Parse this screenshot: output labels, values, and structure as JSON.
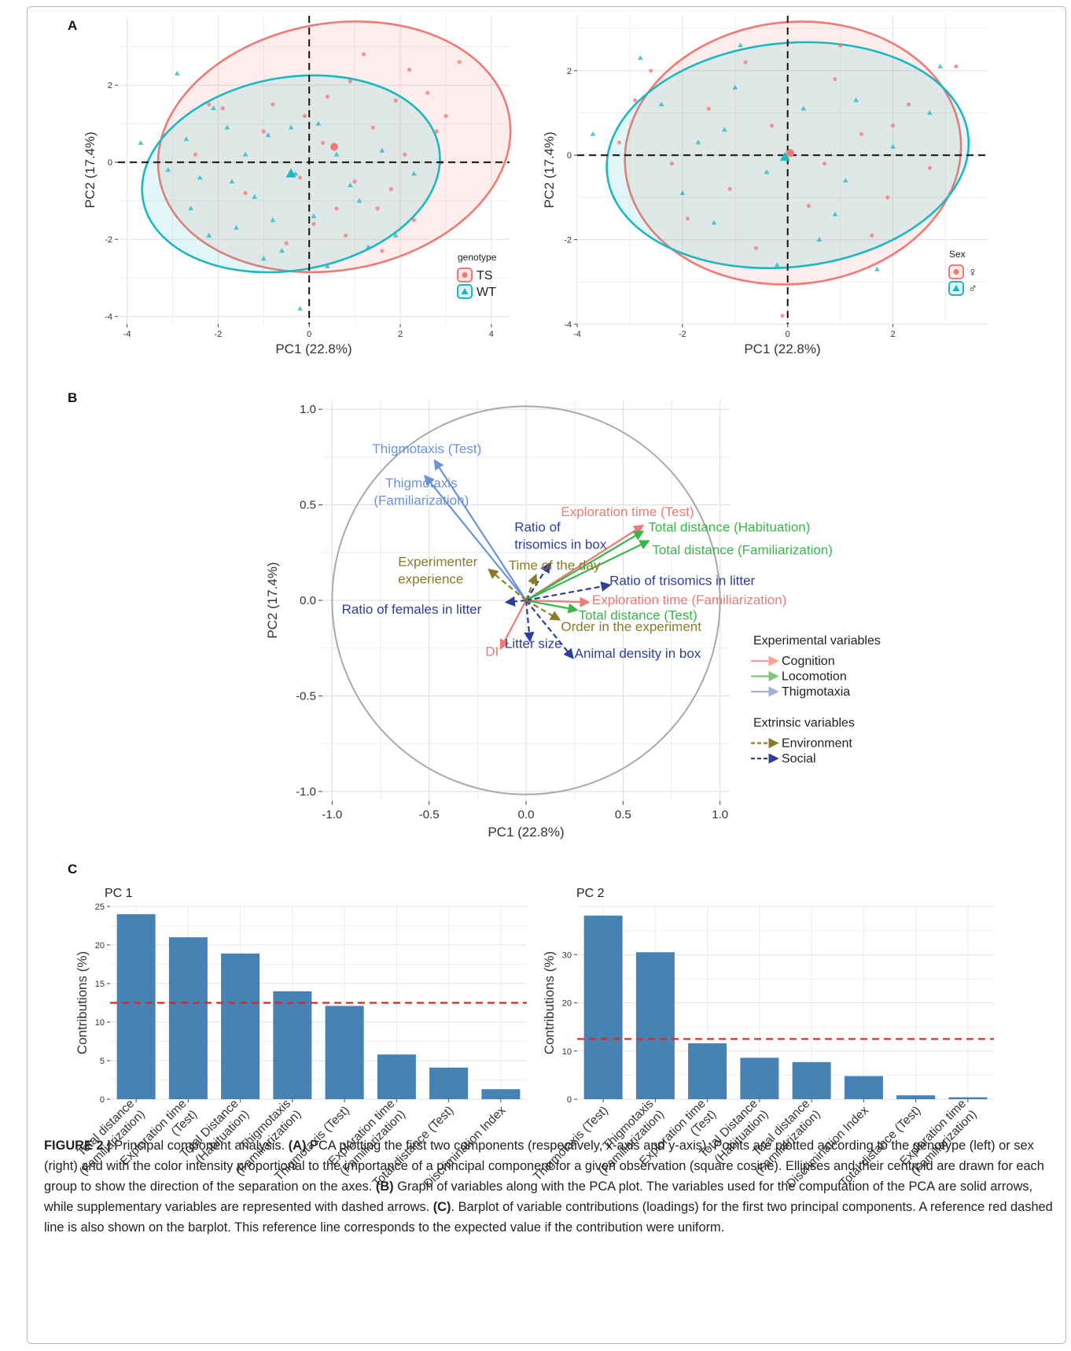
{
  "caption": {
    "label": "FIGURE 2 |",
    "s1": "Principal component analysis.",
    "a_tag": "(A)",
    "a_text": "PCA plotting the first two components (respectively, x-axis and y-axis). Points are plotted according to the genotype (left) or sex (right) and with the color intensity proportional to the importance of a principal component for a given observation (square cosine). Ellipses and their centroid are drawn for each group to show the direction of the separation on the axes.",
    "b_tag": "(B)",
    "b_text": "Graph of variables along with the PCA plot. The variables used for the computation of the PCA are solid arrows, while supplementary variables are represented with dashed arrows.",
    "c_tag": "(C)",
    "c_text": ". Barplot of variable contributions (loadings) for the first two principal components. A reference red dashed line is also shown on the barplot. This reference line corresponds to the expected value if the contribution were uniform."
  },
  "chart_data": [
    {
      "id": "A-genotype",
      "type": "scatter",
      "panel_label": "A",
      "xlabel": "PC1 (22.8%)",
      "ylabel": "PC2 (17.4%)",
      "xlim": [
        -4.2,
        4.4
      ],
      "ylim": [
        -4.2,
        3.8
      ],
      "xticks": [
        -4,
        -2,
        0,
        2,
        4
      ],
      "yticks": [
        -4,
        -2,
        0,
        2
      ],
      "legend": {
        "title": "genotype",
        "position": "bottom-right",
        "entries": [
          "TS",
          "WT"
        ]
      },
      "colors": {
        "TS": "#f07a75",
        "WT": "#1db7c0"
      },
      "ellipses": [
        {
          "name": "TS",
          "cx": 0.55,
          "cy": 0.4,
          "rx": 3.9,
          "ry": 3.2,
          "angle": -10
        },
        {
          "name": "WT",
          "cx": -0.4,
          "cy": -0.3,
          "rx": 3.3,
          "ry": 2.5,
          "angle": -10
        }
      ],
      "centroids": [
        {
          "name": "TS",
          "x": 0.55,
          "y": 0.4
        },
        {
          "name": "WT",
          "x": -0.4,
          "y": -0.3
        }
      ],
      "series": [
        {
          "name": "TS",
          "marker": "circle",
          "points": [
            [
              2.2,
              2.4
            ],
            [
              3.3,
              2.6
            ],
            [
              2.8,
              0.8
            ],
            [
              1.9,
              1.6
            ],
            [
              0.9,
              2.1
            ],
            [
              0.4,
              1.7
            ],
            [
              -0.1,
              1.2
            ],
            [
              1.4,
              0.9
            ],
            [
              2.3,
              -1.5
            ],
            [
              1.6,
              -2.3
            ],
            [
              0.6,
              -1.2
            ],
            [
              -0.2,
              -0.4
            ],
            [
              1.0,
              -0.5
            ],
            [
              -1.0,
              0.8
            ],
            [
              -1.9,
              1.4
            ],
            [
              -2.2,
              1.5
            ],
            [
              2.6,
              1.8
            ],
            [
              1.8,
              -0.7
            ],
            [
              0.8,
              -1.9
            ],
            [
              -0.5,
              -2.1
            ],
            [
              3.0,
              1.2
            ],
            [
              2.1,
              0.2
            ],
            [
              0.3,
              0.5
            ],
            [
              -1.4,
              -0.8
            ],
            [
              1.2,
              2.8
            ],
            [
              -2.5,
              0.2
            ],
            [
              0.1,
              -1.6
            ],
            [
              2.9,
              0.0
            ],
            [
              -0.8,
              1.5
            ],
            [
              1.5,
              -1.2
            ]
          ]
        },
        {
          "name": "WT",
          "marker": "triangle",
          "points": [
            [
              -3.7,
              0.5
            ],
            [
              -2.9,
              2.3
            ],
            [
              -2.7,
              0.6
            ],
            [
              -2.4,
              -0.4
            ],
            [
              -2.1,
              1.4
            ],
            [
              -1.6,
              -1.7
            ],
            [
              -1.2,
              -0.9
            ],
            [
              -0.9,
              0.7
            ],
            [
              -0.6,
              -2.3
            ],
            [
              -0.3,
              -0.3
            ],
            [
              0.1,
              -1.4
            ],
            [
              0.6,
              0.2
            ],
            [
              1.1,
              -1.0
            ],
            [
              1.6,
              0.3
            ],
            [
              2.3,
              -0.3
            ],
            [
              -1.8,
              0.9
            ],
            [
              -2.6,
              -1.2
            ],
            [
              -0.8,
              -1.5
            ],
            [
              0.4,
              -2.7
            ],
            [
              -0.2,
              -3.8
            ],
            [
              1.9,
              -1.9
            ],
            [
              -1.4,
              0.2
            ],
            [
              -2.2,
              -1.9
            ],
            [
              0.9,
              -0.6
            ],
            [
              -1.0,
              -2.5
            ],
            [
              -3.1,
              -0.2
            ],
            [
              0.2,
              1.0
            ],
            [
              1.3,
              -2.2
            ],
            [
              -1.7,
              -0.5
            ],
            [
              -0.4,
              0.9
            ]
          ]
        }
      ]
    },
    {
      "id": "A-sex",
      "type": "scatter",
      "xlabel": "PC1 (22.8%)",
      "ylabel": "PC2 (17.4%)",
      "xlim": [
        -4.0,
        3.8
      ],
      "ylim": [
        -4.0,
        3.3
      ],
      "xticks": [
        -4,
        -2,
        0,
        2
      ],
      "yticks": [
        -4,
        -2,
        0,
        2
      ],
      "legend": {
        "title": "Sex",
        "position": "bottom-right",
        "entries": [
          "♀",
          "♂"
        ]
      },
      "colors": {
        "female": "#f07a75",
        "male": "#1db7c0"
      },
      "ellipses": [
        {
          "name": "female",
          "cx": 0.1,
          "cy": 0.05,
          "rx": 3.2,
          "ry": 3.1,
          "angle": -6
        },
        {
          "name": "male",
          "cx": 0.0,
          "cy": 0.0,
          "rx": 3.45,
          "ry": 2.65,
          "angle": -6
        }
      ],
      "centroids": [
        {
          "name": "female",
          "x": 0.05,
          "y": 0.05
        },
        {
          "name": "male",
          "x": -0.05,
          "y": -0.05
        }
      ],
      "series": [
        {
          "name": "female",
          "marker": "circle",
          "points": [
            [
              3.2,
              2.1
            ],
            [
              -2.6,
              2.0
            ],
            [
              -0.8,
              2.2
            ],
            [
              0.9,
              1.8
            ],
            [
              2.3,
              1.2
            ],
            [
              -1.5,
              1.1
            ],
            [
              -0.3,
              0.7
            ],
            [
              1.4,
              0.5
            ],
            [
              2.7,
              -0.3
            ],
            [
              -2.2,
              -0.2
            ],
            [
              -1.1,
              -0.8
            ],
            [
              0.4,
              -1.2
            ],
            [
              1.6,
              -1.9
            ],
            [
              -0.1,
              -3.8
            ],
            [
              -3.2,
              0.3
            ],
            [
              1.0,
              2.6
            ],
            [
              -1.9,
              -1.5
            ],
            [
              0.7,
              -0.2
            ],
            [
              2.0,
              0.7
            ],
            [
              -0.6,
              -2.2
            ],
            [
              -2.9,
              1.3
            ],
            [
              1.9,
              -1.0
            ]
          ]
        },
        {
          "name": "male",
          "marker": "triangle",
          "points": [
            [
              -3.7,
              0.5
            ],
            [
              -2.4,
              1.2
            ],
            [
              -1.7,
              0.3
            ],
            [
              -1.0,
              1.6
            ],
            [
              -0.4,
              -0.4
            ],
            [
              0.3,
              1.1
            ],
            [
              1.1,
              -0.6
            ],
            [
              2.0,
              0.2
            ],
            [
              2.7,
              1.0
            ],
            [
              -0.9,
              2.6
            ],
            [
              1.7,
              -2.7
            ],
            [
              -2.0,
              -0.9
            ],
            [
              0.6,
              -2.0
            ],
            [
              -1.4,
              -1.6
            ],
            [
              2.9,
              2.1
            ],
            [
              -0.2,
              -2.6
            ],
            [
              1.3,
              1.3
            ],
            [
              -2.8,
              2.3
            ],
            [
              0.9,
              -1.4
            ],
            [
              -1.2,
              0.6
            ]
          ]
        }
      ]
    },
    {
      "id": "B",
      "type": "vector",
      "panel_label": "B",
      "xlabel": "PC1 (22.8%)",
      "ylabel": "PC2 (17.4%)",
      "xlim": [
        -1.05,
        1.05
      ],
      "ylim": [
        -1.05,
        1.05
      ],
      "xticks": [
        "-1.0",
        "-0.5",
        "0.0",
        "0.5",
        "1.0"
      ],
      "yticks": [
        "1.0",
        "0.5",
        "0.0",
        "-0.5",
        "-1.0"
      ],
      "legend": {
        "position": "right",
        "groups": [
          {
            "title": "Experimental variables",
            "items": [
              {
                "label": "Cognition",
                "color": "#f79e96",
                "dashed": false
              },
              {
                "label": "Locomotion",
                "color": "#7ec87e",
                "dashed": false
              },
              {
                "label": "Thigmotaxia",
                "color": "#9fb3da",
                "dashed": false
              }
            ]
          },
          {
            "title": "Extrinsic variables",
            "items": [
              {
                "label": "Environment",
                "color": "#8a7a2b",
                "dashed": true
              },
              {
                "label": "Social",
                "color": "#2e3e9c",
                "dashed": true
              }
            ]
          }
        ]
      },
      "arrows": [
        {
          "name": "Thigmotaxis (Test)",
          "x": -0.47,
          "y": 0.73,
          "color": "#6b93d6",
          "dashed": false,
          "label": [
            "Thigmotaxis (Test)"
          ],
          "lx": -0.23,
          "ly": 0.77,
          "anchor": "end"
        },
        {
          "name": "Thigmotaxis (Familiarization)",
          "x": -0.52,
          "y": 0.65,
          "color": "#6b93d6",
          "dashed": false,
          "label": [
            "Thigmotaxis",
            "(Familiarization)"
          ],
          "lx": -0.54,
          "ly": 0.59,
          "anchor": "middle"
        },
        {
          "name": "Exploration time (Test)",
          "x": 0.6,
          "y": 0.39,
          "color": "#f07a75",
          "dashed": false,
          "label": [
            "Exploration time (Test)"
          ],
          "lx": 0.18,
          "ly": 0.44,
          "anchor": "start"
        },
        {
          "name": "Total distance (Habituation)",
          "x": 0.6,
          "y": 0.36,
          "color": "#39b54a",
          "dashed": false,
          "label": [
            "Total distance (Habituation)"
          ],
          "lx": 0.63,
          "ly": 0.36,
          "anchor": "start"
        },
        {
          "name": "Total distance (Familiarization)",
          "x": 0.63,
          "y": 0.31,
          "color": "#39b54a",
          "dashed": false,
          "label": [
            "Total distance (Familiarization)"
          ],
          "lx": 0.65,
          "ly": 0.24,
          "anchor": "start"
        },
        {
          "name": "Exploration time (Familiarization)",
          "x": 0.32,
          "y": -0.01,
          "color": "#f07a75",
          "dashed": false,
          "label": [
            "Exploration time (Familiarization)"
          ],
          "lx": 0.34,
          "ly": -0.02,
          "anchor": "start"
        },
        {
          "name": "Total distance (Test)",
          "x": 0.26,
          "y": -0.05,
          "color": "#39b54a",
          "dashed": false,
          "label": [
            "Total distance (Test)"
          ],
          "lx": 0.27,
          "ly": -0.1,
          "anchor": "start"
        },
        {
          "name": "DI",
          "x": -0.13,
          "y": -0.25,
          "color": "#f07a75",
          "dashed": false,
          "label": [
            "DI"
          ],
          "lx": -0.21,
          "ly": -0.29,
          "anchor": "start"
        },
        {
          "name": "Ratio of trisomics in box",
          "x": 0.12,
          "y": 0.19,
          "color": "#2e3e9c",
          "dashed": true,
          "label": [
            "Ratio of",
            "trisomics in box"
          ],
          "lx": -0.06,
          "ly": 0.36,
          "anchor": "start"
        },
        {
          "name": "Ratio of trisomics in litter",
          "x": 0.43,
          "y": 0.08,
          "color": "#2e3e9c",
          "dashed": true,
          "label": [
            "Ratio of trisomics in litter"
          ],
          "lx": 0.43,
          "ly": 0.08,
          "anchor": "start"
        },
        {
          "name": "Ratio of females in litter",
          "x": -0.1,
          "y": -0.01,
          "color": "#2e3e9c",
          "dashed": true,
          "label": [
            "Ratio of females in litter"
          ],
          "lx": -0.95,
          "ly": -0.07,
          "anchor": "start"
        },
        {
          "name": "Litter size",
          "x": 0.02,
          "y": -0.21,
          "color": "#2e3e9c",
          "dashed": true,
          "label": [
            "Litter size"
          ],
          "lx": -0.11,
          "ly": -0.25,
          "anchor": "start"
        },
        {
          "name": "Animal density in box",
          "x": 0.24,
          "y": -0.3,
          "color": "#2e3e9c",
          "dashed": true,
          "label": [
            "Animal density in box"
          ],
          "lx": 0.25,
          "ly": -0.3,
          "anchor": "start"
        },
        {
          "name": "Experimenter experience",
          "x": -0.19,
          "y": 0.16,
          "color": "#8a7a2b",
          "dashed": true,
          "label": [
            "Experimenter",
            "experience"
          ],
          "lx": -0.66,
          "ly": 0.18,
          "anchor": "start"
        },
        {
          "name": "Time of the day",
          "x": 0.05,
          "y": 0.13,
          "color": "#8a7a2b",
          "dashed": true,
          "label": [
            "Time of the day"
          ],
          "lx": -0.09,
          "ly": 0.16,
          "anchor": "start"
        },
        {
          "name": "Order in the experiment",
          "x": 0.17,
          "y": -0.1,
          "color": "#8a7a2b",
          "dashed": true,
          "label": [
            "Order in the experiment"
          ],
          "lx": 0.18,
          "ly": -0.16,
          "anchor": "start"
        }
      ]
    },
    {
      "id": "C-PC1",
      "type": "bar",
      "panel_label": "C",
      "title": "PC 1",
      "ylabel": "Contributions (%)",
      "ylim": [
        0,
        25
      ],
      "yticks": [
        0,
        5,
        10,
        15,
        20,
        25
      ],
      "reference_line": 12.5,
      "bar_color": "#4682b4",
      "categories": [
        [
          "Total distance",
          "(Familiarization)"
        ],
        [
          "Exploration time",
          "(Test)"
        ],
        [
          "Total Distance",
          "(Habituation)"
        ],
        [
          "Thigmotaxis",
          "(Familiarization)"
        ],
        [
          "Thigmotaxis (Test)"
        ],
        [
          "Exploration time",
          "(Familiarization)"
        ],
        [
          "Total distance (Test)"
        ],
        [
          "Discrimination Index"
        ]
      ],
      "values": [
        24.0,
        21.0,
        18.9,
        14.0,
        12.1,
        5.8,
        4.1,
        1.3
      ]
    },
    {
      "id": "C-PC2",
      "type": "bar",
      "title": "PC 2",
      "ylabel": "Contributions (%)",
      "ylim": [
        0,
        40
      ],
      "yticks": [
        0,
        10,
        20,
        30
      ],
      "reference_line": 12.5,
      "bar_color": "#4682b4",
      "categories": [
        [
          "Thigmotaxis (Test)"
        ],
        [
          "Thigmotaxis",
          "(Familiarization)"
        ],
        [
          "Exploration time",
          "(Test)"
        ],
        [
          "Total Distance",
          "(Habituation)"
        ],
        [
          "Total distance",
          "(Familiarization)"
        ],
        [
          "Discrimination Index"
        ],
        [
          "Total distance (Test)"
        ],
        [
          "Exploration time",
          "(Familiarization)"
        ]
      ],
      "values": [
        38.1,
        30.5,
        11.6,
        8.6,
        7.7,
        4.8,
        0.8,
        0.4
      ]
    }
  ]
}
